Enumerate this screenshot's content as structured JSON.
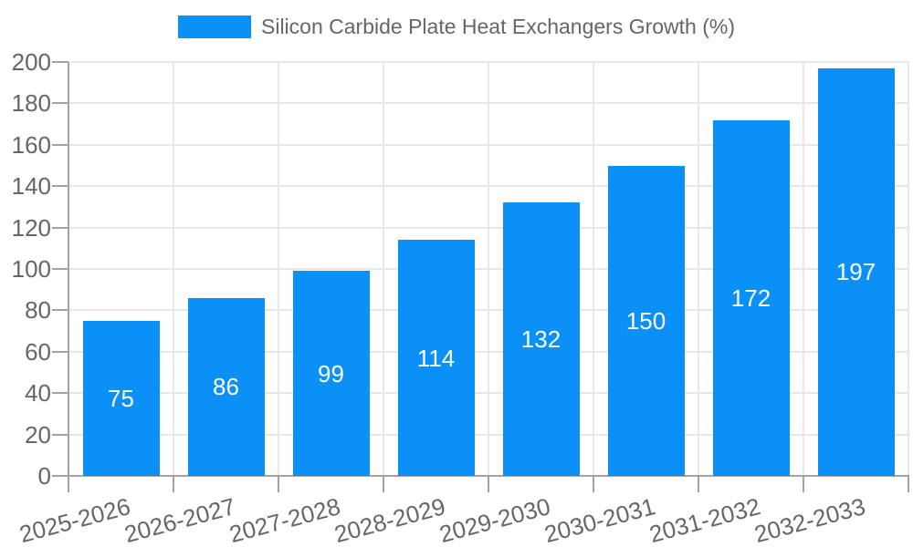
{
  "chart_data": {
    "type": "bar",
    "title": "Silicon Carbide Plate Heat Exchangers Growth (%)",
    "categories": [
      "2025-2026",
      "2026-2027",
      "2027-2028",
      "2028-2029",
      "2029-2030",
      "2030-2031",
      "2031-2032",
      "2032-2033"
    ],
    "series": [
      {
        "name": "Silicon Carbide Plate Heat Exchangers Growth (%)",
        "values": [
          75,
          86,
          99,
          114,
          132,
          150,
          172,
          197
        ]
      }
    ],
    "xlabel": "",
    "ylabel": "",
    "ylim": [
      0,
      200
    ],
    "ytick_step": 20,
    "yticks": [
      0,
      20,
      40,
      60,
      80,
      100,
      120,
      140,
      160,
      180,
      200
    ],
    "grid": "horizontal and vertical category-boundary gridlines",
    "legend_position": "top-center",
    "value_label_position": "inside-center",
    "x_label_rotation_deg": -15,
    "colors": {
      "bar": "#0a90f6",
      "value_label": "#ffffff",
      "gridline": "#e7e7e7",
      "axis": "#a3a3a3",
      "tick_label": "#666666",
      "legend_text": "#666666",
      "background": "#ffffff"
    }
  }
}
